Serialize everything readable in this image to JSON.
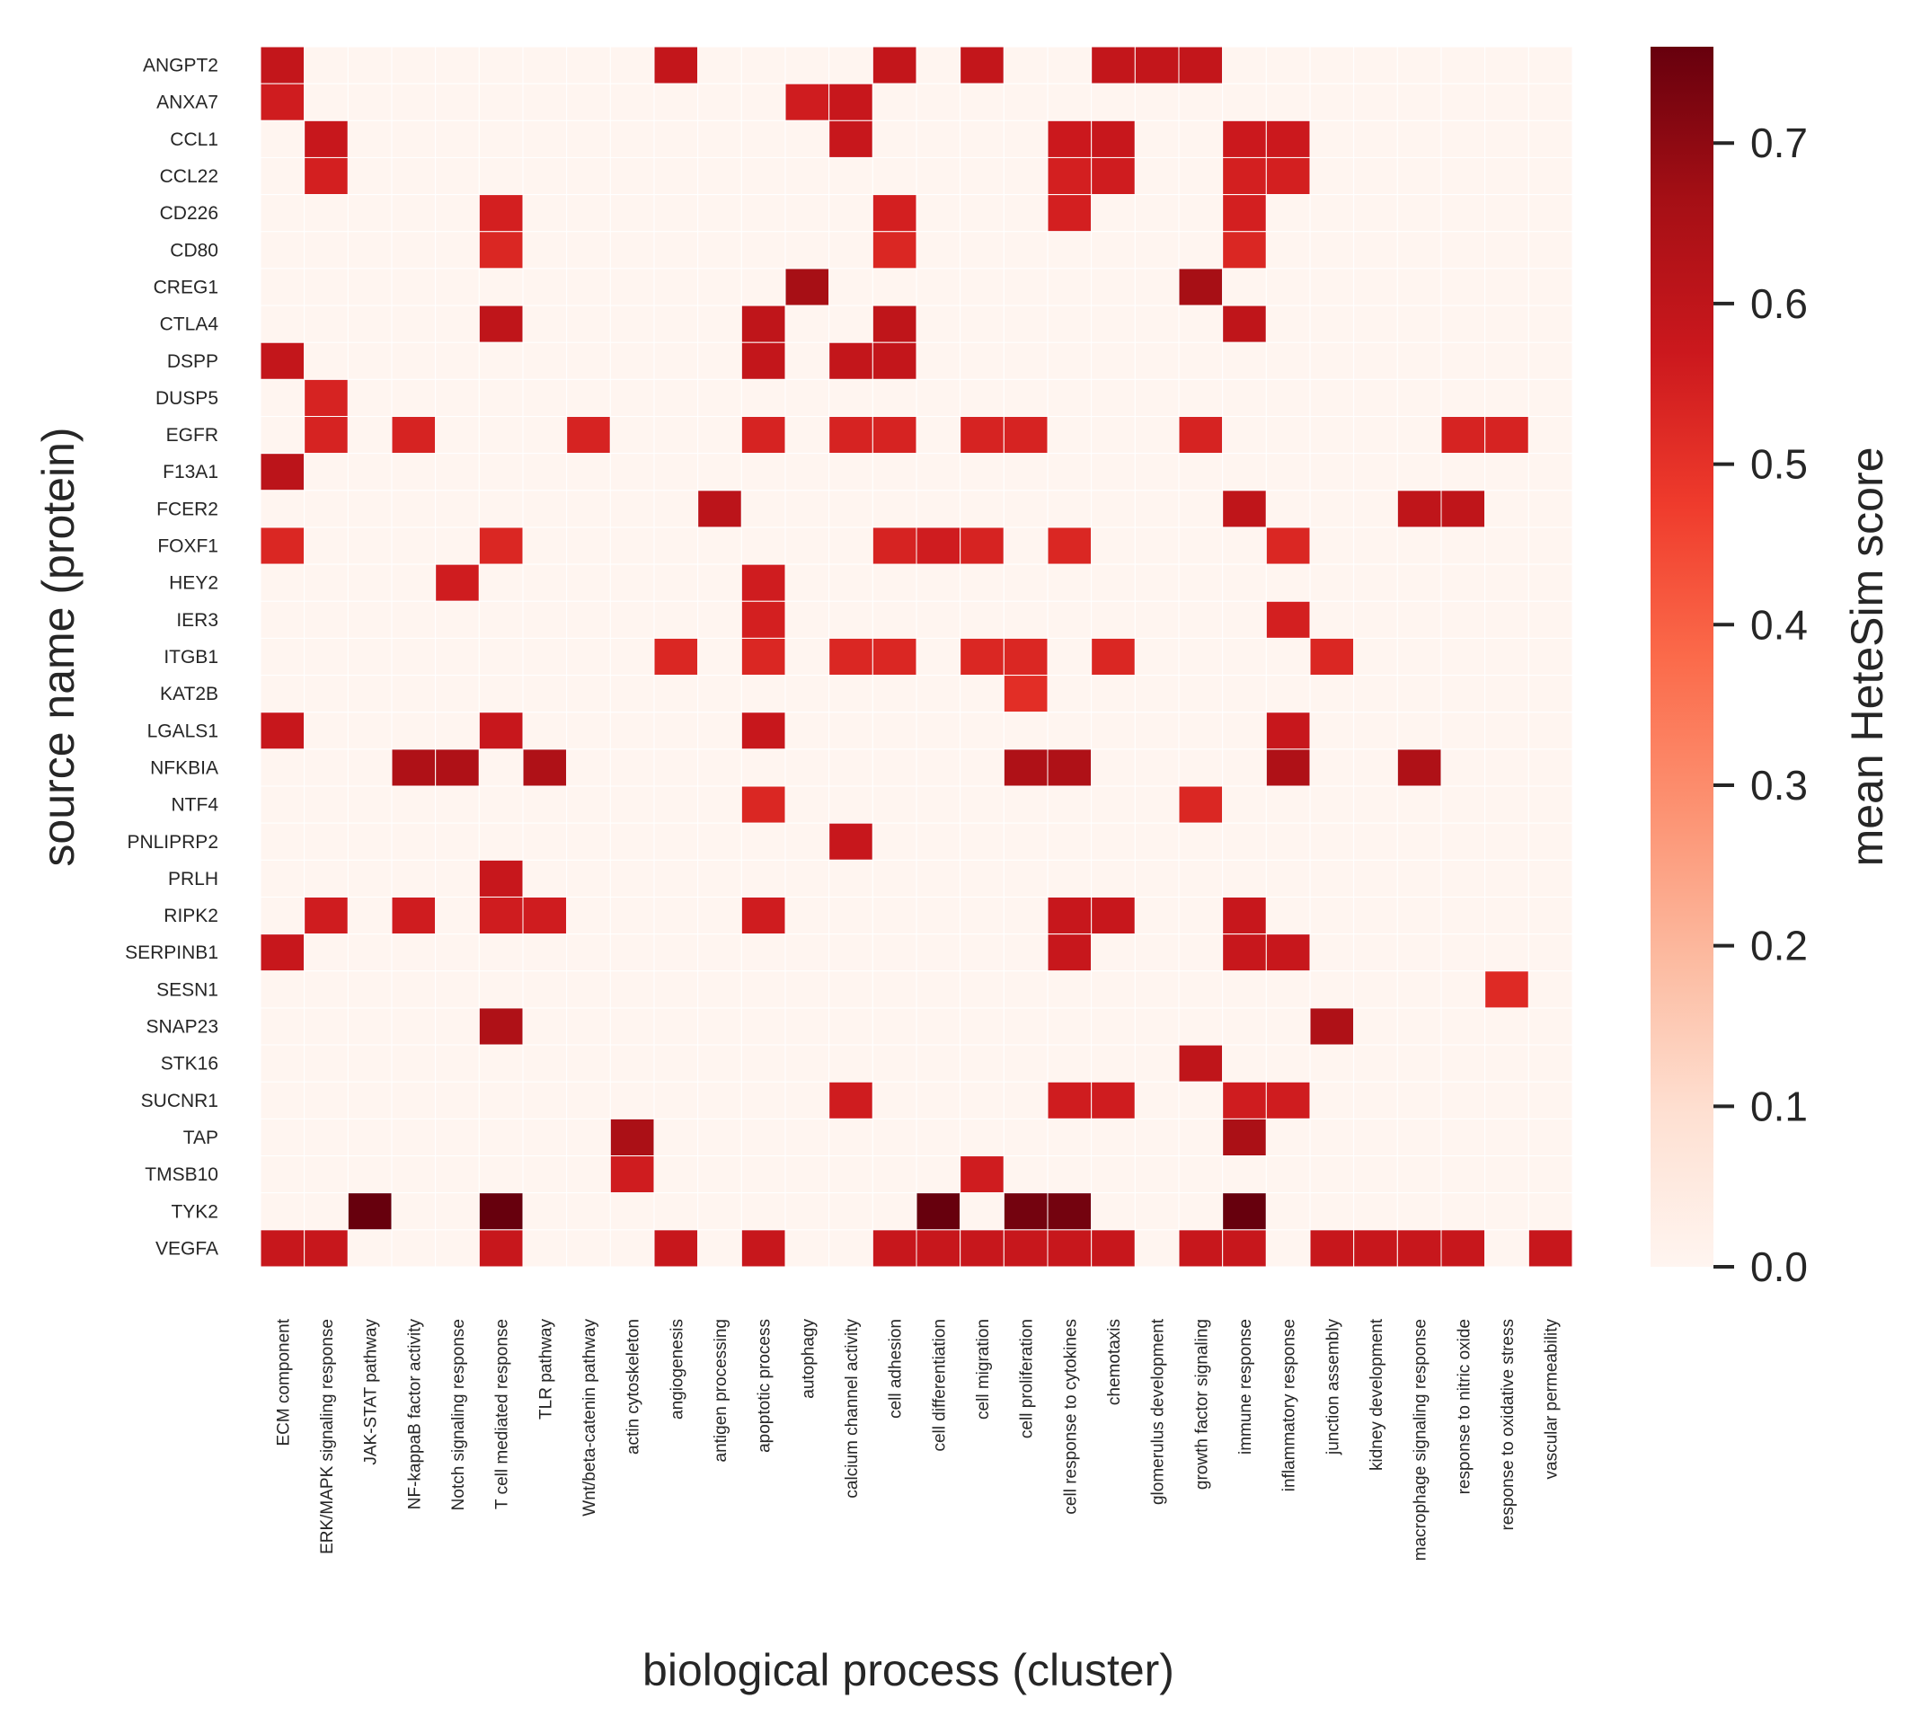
{
  "chart_data": {
    "type": "heatmap",
    "xlabel": "biological process (cluster)",
    "ylabel": "source name (protein)",
    "colorbar_label": "mean HeteSim score",
    "colorbar_ticks": [
      "0.0",
      "0.1",
      "0.2",
      "0.3",
      "0.4",
      "0.5",
      "0.6",
      "0.7"
    ],
    "value_range": [
      0,
      0.76
    ],
    "colormap": "Reds",
    "colors": {
      "low": "#fff5f0",
      "high": "#67000d"
    },
    "x_categories": [
      "ECM component",
      "ERK/MAPK signaling response",
      "JAK-STAT pathway",
      "NF-kappaB factor activity",
      "Notch signaling response",
      "T cell mediated response",
      "TLR pathway",
      "Wnt/beta-catenin pathway",
      "actin cytoskeleton",
      "angiogenesis",
      "antigen processing",
      "apoptotic process",
      "autophagy",
      "calcium channel activity",
      "cell adhesion",
      "cell differentiation",
      "cell migration",
      "cell proliferation",
      "cell response to cytokines",
      "chemotaxis",
      "glomerulus development",
      "growth factor signaling",
      "immune response",
      "inflammatory response",
      "junction assembly",
      "kidney development",
      "macrophage signaling response",
      "response to nitric oxide",
      "response to oxidative stress",
      "vascular permeability"
    ],
    "y_categories": [
      "ANGPT2",
      "ANXA7",
      "CCL1",
      "CCL22",
      "CD226",
      "CD80",
      "CREG1",
      "CTLA4",
      "DSPP",
      "DUSP5",
      "EGFR",
      "F13A1",
      "FCER2",
      "FOXF1",
      "HEY2",
      "IER3",
      "ITGB1",
      "KAT2B",
      "LGALS1",
      "NFKBIA",
      "NTF4",
      "PNLIPRP2",
      "PRLH",
      "RIPK2",
      "SERPINB1",
      "SESN1",
      "SNAP23",
      "STK16",
      "SUCNR1",
      "TAP",
      "TMSB10",
      "TYK2",
      "VEGFA"
    ],
    "cells": [
      {
        "y": "ANGPT2",
        "x": "ECM component",
        "value": 0.59
      },
      {
        "y": "ANGPT2",
        "x": "angiogenesis",
        "value": 0.59
      },
      {
        "y": "ANGPT2",
        "x": "cell adhesion",
        "value": 0.59
      },
      {
        "y": "ANGPT2",
        "x": "cell migration",
        "value": 0.59
      },
      {
        "y": "ANGPT2",
        "x": "chemotaxis",
        "value": 0.59
      },
      {
        "y": "ANGPT2",
        "x": "glomerulus development",
        "value": 0.59
      },
      {
        "y": "ANGPT2",
        "x": "growth factor signaling",
        "value": 0.59
      },
      {
        "y": "ANXA7",
        "x": "ECM component",
        "value": 0.56
      },
      {
        "y": "ANXA7",
        "x": "autophagy",
        "value": 0.56
      },
      {
        "y": "ANXA7",
        "x": "calcium channel activity",
        "value": 0.58
      },
      {
        "y": "CCL1",
        "x": "ERK/MAPK signaling response",
        "value": 0.58
      },
      {
        "y": "CCL1",
        "x": "calcium channel activity",
        "value": 0.58
      },
      {
        "y": "CCL1",
        "x": "cell response to cytokines",
        "value": 0.57
      },
      {
        "y": "CCL1",
        "x": "chemotaxis",
        "value": 0.58
      },
      {
        "y": "CCL1",
        "x": "immune response",
        "value": 0.57
      },
      {
        "y": "CCL1",
        "x": "inflammatory response",
        "value": 0.57
      },
      {
        "y": "CCL22",
        "x": "ERK/MAPK signaling response",
        "value": 0.55
      },
      {
        "y": "CCL22",
        "x": "cell response to cytokines",
        "value": 0.55
      },
      {
        "y": "CCL22",
        "x": "chemotaxis",
        "value": 0.56
      },
      {
        "y": "CCL22",
        "x": "immune response",
        "value": 0.55
      },
      {
        "y": "CCL22",
        "x": "inflammatory response",
        "value": 0.55
      },
      {
        "y": "CD226",
        "x": "T cell mediated response",
        "value": 0.55
      },
      {
        "y": "CD226",
        "x": "cell adhesion",
        "value": 0.55
      },
      {
        "y": "CD226",
        "x": "cell response to cytokines",
        "value": 0.55
      },
      {
        "y": "CD226",
        "x": "immune response",
        "value": 0.55
      },
      {
        "y": "CD80",
        "x": "T cell mediated response",
        "value": 0.53
      },
      {
        "y": "CD80",
        "x": "cell adhesion",
        "value": 0.53
      },
      {
        "y": "CD80",
        "x": "immune response",
        "value": 0.53
      },
      {
        "y": "CREG1",
        "x": "autophagy",
        "value": 0.66
      },
      {
        "y": "CREG1",
        "x": "growth factor signaling",
        "value": 0.66
      },
      {
        "y": "CTLA4",
        "x": "T cell mediated response",
        "value": 0.6
      },
      {
        "y": "CTLA4",
        "x": "apoptotic process",
        "value": 0.6
      },
      {
        "y": "CTLA4",
        "x": "cell adhesion",
        "value": 0.6
      },
      {
        "y": "CTLA4",
        "x": "immune response",
        "value": 0.6
      },
      {
        "y": "DSPP",
        "x": "ECM component",
        "value": 0.59
      },
      {
        "y": "DSPP",
        "x": "apoptotic process",
        "value": 0.59
      },
      {
        "y": "DSPP",
        "x": "calcium channel activity",
        "value": 0.59
      },
      {
        "y": "DSPP",
        "x": "cell adhesion",
        "value": 0.59
      },
      {
        "y": "DUSP5",
        "x": "ERK/MAPK signaling response",
        "value": 0.54
      },
      {
        "y": "EGFR",
        "x": "ERK/MAPK signaling response",
        "value": 0.54
      },
      {
        "y": "EGFR",
        "x": "NF-kappaB factor activity",
        "value": 0.54
      },
      {
        "y": "EGFR",
        "x": "Wnt/beta-catenin pathway",
        "value": 0.54
      },
      {
        "y": "EGFR",
        "x": "apoptotic process",
        "value": 0.54
      },
      {
        "y": "EGFR",
        "x": "calcium channel activity",
        "value": 0.54
      },
      {
        "y": "EGFR",
        "x": "cell adhesion",
        "value": 0.54
      },
      {
        "y": "EGFR",
        "x": "cell migration",
        "value": 0.54
      },
      {
        "y": "EGFR",
        "x": "cell proliferation",
        "value": 0.54
      },
      {
        "y": "EGFR",
        "x": "growth factor signaling",
        "value": 0.54
      },
      {
        "y": "EGFR",
        "x": "response to nitric oxide",
        "value": 0.54
      },
      {
        "y": "EGFR",
        "x": "response to oxidative stress",
        "value": 0.54
      },
      {
        "y": "F13A1",
        "x": "ECM component",
        "value": 0.61
      },
      {
        "y": "FCER2",
        "x": "antigen processing",
        "value": 0.61
      },
      {
        "y": "FCER2",
        "x": "immune response",
        "value": 0.6
      },
      {
        "y": "FCER2",
        "x": "macrophage signaling response",
        "value": 0.6
      },
      {
        "y": "FCER2",
        "x": "response to nitric oxide",
        "value": 0.6
      },
      {
        "y": "FOXF1",
        "x": "ECM component",
        "value": 0.53
      },
      {
        "y": "FOXF1",
        "x": "T cell mediated response",
        "value": 0.53
      },
      {
        "y": "FOXF1",
        "x": "cell adhesion",
        "value": 0.54
      },
      {
        "y": "FOXF1",
        "x": "cell differentiation",
        "value": 0.56
      },
      {
        "y": "FOXF1",
        "x": "cell migration",
        "value": 0.54
      },
      {
        "y": "FOXF1",
        "x": "cell response to cytokines",
        "value": 0.53
      },
      {
        "y": "FOXF1",
        "x": "inflammatory response",
        "value": 0.53
      },
      {
        "y": "HEY2",
        "x": "Notch signaling response",
        "value": 0.56
      },
      {
        "y": "HEY2",
        "x": "apoptotic process",
        "value": 0.56
      },
      {
        "y": "IER3",
        "x": "apoptotic process",
        "value": 0.55
      },
      {
        "y": "IER3",
        "x": "inflammatory response",
        "value": 0.55
      },
      {
        "y": "ITGB1",
        "x": "angiogenesis",
        "value": 0.53
      },
      {
        "y": "ITGB1",
        "x": "apoptotic process",
        "value": 0.53
      },
      {
        "y": "ITGB1",
        "x": "calcium channel activity",
        "value": 0.53
      },
      {
        "y": "ITGB1",
        "x": "cell adhesion",
        "value": 0.53
      },
      {
        "y": "ITGB1",
        "x": "cell migration",
        "value": 0.53
      },
      {
        "y": "ITGB1",
        "x": "cell proliferation",
        "value": 0.53
      },
      {
        "y": "ITGB1",
        "x": "chemotaxis",
        "value": 0.53
      },
      {
        "y": "ITGB1",
        "x": "junction assembly",
        "value": 0.53
      },
      {
        "y": "KAT2B",
        "x": "cell proliferation",
        "value": 0.51
      },
      {
        "y": "LGALS1",
        "x": "ECM component",
        "value": 0.58
      },
      {
        "y": "LGALS1",
        "x": "T cell mediated response",
        "value": 0.58
      },
      {
        "y": "LGALS1",
        "x": "apoptotic process",
        "value": 0.58
      },
      {
        "y": "LGALS1",
        "x": "inflammatory response",
        "value": 0.58
      },
      {
        "y": "NFKBIA",
        "x": "NF-kappaB factor activity",
        "value": 0.64
      },
      {
        "y": "NFKBIA",
        "x": "Notch signaling response",
        "value": 0.64
      },
      {
        "y": "NFKBIA",
        "x": "TLR pathway",
        "value": 0.64
      },
      {
        "y": "NFKBIA",
        "x": "cell proliferation",
        "value": 0.64
      },
      {
        "y": "NFKBIA",
        "x": "cell response to cytokines",
        "value": 0.64
      },
      {
        "y": "NFKBIA",
        "x": "inflammatory response",
        "value": 0.64
      },
      {
        "y": "NFKBIA",
        "x": "macrophage signaling response",
        "value": 0.64
      },
      {
        "y": "NTF4",
        "x": "apoptotic process",
        "value": 0.53
      },
      {
        "y": "NTF4",
        "x": "growth factor signaling",
        "value": 0.53
      },
      {
        "y": "PNLIPRP2",
        "x": "calcium channel activity",
        "value": 0.58
      },
      {
        "y": "PRLH",
        "x": "T cell mediated response",
        "value": 0.58
      },
      {
        "y": "RIPK2",
        "x": "ERK/MAPK signaling response",
        "value": 0.56
      },
      {
        "y": "RIPK2",
        "x": "NF-kappaB factor activity",
        "value": 0.56
      },
      {
        "y": "RIPK2",
        "x": "T cell mediated response",
        "value": 0.56
      },
      {
        "y": "RIPK2",
        "x": "TLR pathway",
        "value": 0.56
      },
      {
        "y": "RIPK2",
        "x": "apoptotic process",
        "value": 0.56
      },
      {
        "y": "RIPK2",
        "x": "cell response to cytokines",
        "value": 0.58
      },
      {
        "y": "RIPK2",
        "x": "chemotaxis",
        "value": 0.58
      },
      {
        "y": "RIPK2",
        "x": "immune response",
        "value": 0.58
      },
      {
        "y": "SERPINB1",
        "x": "ECM component",
        "value": 0.58
      },
      {
        "y": "SERPINB1",
        "x": "cell response to cytokines",
        "value": 0.58
      },
      {
        "y": "SERPINB1",
        "x": "immune response",
        "value": 0.58
      },
      {
        "y": "SERPINB1",
        "x": "inflammatory response",
        "value": 0.58
      },
      {
        "y": "SESN1",
        "x": "response to oxidative stress",
        "value": 0.52
      },
      {
        "y": "SNAP23",
        "x": "T cell mediated response",
        "value": 0.64
      },
      {
        "y": "SNAP23",
        "x": "junction assembly",
        "value": 0.64
      },
      {
        "y": "STK16",
        "x": "growth factor signaling",
        "value": 0.6
      },
      {
        "y": "SUCNR1",
        "x": "calcium channel activity",
        "value": 0.56
      },
      {
        "y": "SUCNR1",
        "x": "cell response to cytokines",
        "value": 0.56
      },
      {
        "y": "SUCNR1",
        "x": "chemotaxis",
        "value": 0.56
      },
      {
        "y": "SUCNR1",
        "x": "immune response",
        "value": 0.56
      },
      {
        "y": "SUCNR1",
        "x": "inflammatory response",
        "value": 0.56
      },
      {
        "y": "TAP",
        "x": "actin cytoskeleton",
        "value": 0.65
      },
      {
        "y": "TAP",
        "x": "immune response",
        "value": 0.65
      },
      {
        "y": "TMSB10",
        "x": "actin cytoskeleton",
        "value": 0.56
      },
      {
        "y": "TMSB10",
        "x": "cell migration",
        "value": 0.56
      },
      {
        "y": "TYK2",
        "x": "JAK-STAT pathway",
        "value": 0.76
      },
      {
        "y": "TYK2",
        "x": "T cell mediated response",
        "value": 0.76
      },
      {
        "y": "TYK2",
        "x": "cell differentiation",
        "value": 0.76
      },
      {
        "y": "TYK2",
        "x": "cell proliferation",
        "value": 0.74
      },
      {
        "y": "TYK2",
        "x": "cell response to cytokines",
        "value": 0.74
      },
      {
        "y": "TYK2",
        "x": "immune response",
        "value": 0.76
      },
      {
        "y": "VEGFA",
        "x": "ECM component",
        "value": 0.58
      },
      {
        "y": "VEGFA",
        "x": "ERK/MAPK signaling response",
        "value": 0.58
      },
      {
        "y": "VEGFA",
        "x": "T cell mediated response",
        "value": 0.58
      },
      {
        "y": "VEGFA",
        "x": "angiogenesis",
        "value": 0.58
      },
      {
        "y": "VEGFA",
        "x": "apoptotic process",
        "value": 0.58
      },
      {
        "y": "VEGFA",
        "x": "cell adhesion",
        "value": 0.58
      },
      {
        "y": "VEGFA",
        "x": "cell differentiation",
        "value": 0.58
      },
      {
        "y": "VEGFA",
        "x": "cell migration",
        "value": 0.58
      },
      {
        "y": "VEGFA",
        "x": "cell proliferation",
        "value": 0.58
      },
      {
        "y": "VEGFA",
        "x": "cell response to cytokines",
        "value": 0.58
      },
      {
        "y": "VEGFA",
        "x": "chemotaxis",
        "value": 0.58
      },
      {
        "y": "VEGFA",
        "x": "growth factor signaling",
        "value": 0.58
      },
      {
        "y": "VEGFA",
        "x": "immune response",
        "value": 0.58
      },
      {
        "y": "VEGFA",
        "x": "junction assembly",
        "value": 0.58
      },
      {
        "y": "VEGFA",
        "x": "kidney development",
        "value": 0.58
      },
      {
        "y": "VEGFA",
        "x": "macrophage signaling response",
        "value": 0.58
      },
      {
        "y": "VEGFA",
        "x": "response to nitric oxide",
        "value": 0.58
      },
      {
        "y": "VEGFA",
        "x": "vascular permeability",
        "value": 0.58
      }
    ]
  }
}
